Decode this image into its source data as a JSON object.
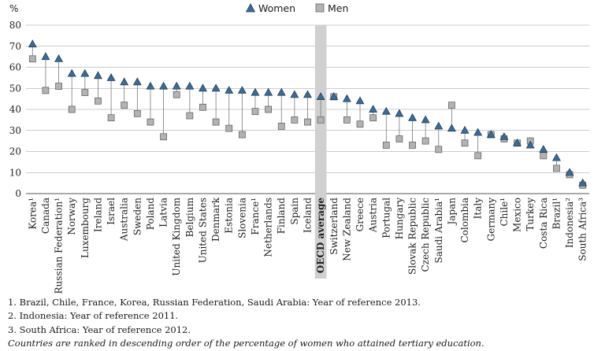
{
  "chart_data": {
    "type": "scatter",
    "ylabel": "%",
    "ylim": [
      0,
      80
    ],
    "yticks": [
      0,
      10,
      20,
      30,
      40,
      50,
      60,
      70,
      80
    ],
    "grid": true,
    "legend_position": "top-center",
    "categories": [
      "Korea¹",
      "Canada",
      "Russian Federation¹",
      "Norway",
      "Luxembourg",
      "Ireland",
      "Israel",
      "Australia",
      "Sweden",
      "Poland",
      "Latvia",
      "United Kingdom",
      "Belgium",
      "United States",
      "Denmark",
      "Estonia",
      "Slovenia",
      "France¹",
      "Netherlands",
      "Finland",
      "Spain",
      "Iceland",
      "OECD average",
      "Switzerland",
      "New Zealand",
      "Greece",
      "Austria",
      "Portugal",
      "Hungary",
      "Slovak Republic",
      "Czech Republic",
      "Saudi Arabia¹",
      "Japan",
      "Colombia",
      "Italy",
      "Germany",
      "Chile¹",
      "Mexico",
      "Turkey",
      "Costa Rica",
      "Brazil¹",
      "Indonesia²",
      "South Africa³"
    ],
    "highlight_category": "OECD average",
    "series": [
      {
        "name": "Women",
        "marker": "triangle",
        "color": "#3d6b95",
        "values": [
          71,
          65,
          64,
          57,
          57,
          56,
          55,
          53,
          53,
          51,
          51,
          51,
          51,
          50,
          50,
          49,
          49,
          48,
          48,
          48,
          47,
          47,
          46,
          46,
          45,
          44,
          40,
          39,
          38,
          36,
          35,
          32,
          31,
          30,
          29,
          28,
          27,
          24,
          23,
          21,
          17,
          10,
          5
        ]
      },
      {
        "name": "Men",
        "marker": "square",
        "color": "#b3b3b3",
        "values": [
          64,
          49,
          51,
          40,
          48,
          44,
          36,
          42,
          38,
          34,
          27,
          47,
          37,
          41,
          34,
          31,
          28,
          39,
          40,
          32,
          35,
          34,
          35,
          46,
          35,
          33,
          36,
          23,
          26,
          23,
          25,
          21,
          42,
          24,
          18,
          28,
          26,
          24,
          25,
          18,
          12,
          9,
          4
        ]
      }
    ]
  },
  "legend": {
    "women": "Women",
    "men": "Men"
  },
  "notes": [
    "1. Brazil, Chile, France, Korea, Russian Federation, Saudi Arabia: Year of reference 2013.",
    "2. Indonesia: Year of reference 2011.",
    "3. South Africa: Year of reference 2012."
  ],
  "ranking_note": "Countries are ranked in descending order of the percentage of women who attained tertiary education."
}
